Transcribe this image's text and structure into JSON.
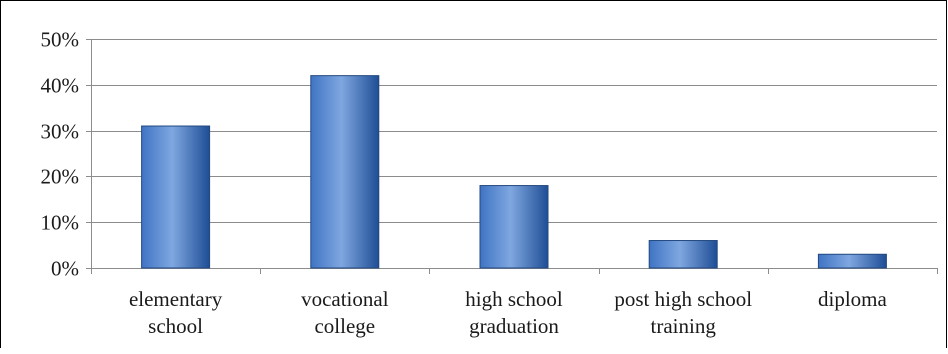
{
  "chart_data": {
    "type": "bar",
    "title": "",
    "xlabel": "",
    "ylabel": "",
    "categories": [
      [
        "elementary",
        "school"
      ],
      [
        "vocational",
        "college"
      ],
      [
        "high school",
        "graduation"
      ],
      [
        "post high school",
        "training"
      ],
      [
        "diploma"
      ]
    ],
    "values": [
      31,
      42,
      18,
      6,
      3
    ],
    "ylim": [
      0,
      50
    ],
    "yticks": [
      0,
      10,
      20,
      30,
      40,
      50
    ],
    "ytick_labels": [
      "0%",
      "10%",
      "20%",
      "30%",
      "40%",
      "50%"
    ],
    "grid": true,
    "legend": "none",
    "colors": {
      "bar_light": "#7fa7e0",
      "bar_mid": "#3f74c4",
      "bar_dark": "#1f4e96",
      "bar_edge": "#23497f",
      "grid": "#8c8c8c",
      "axis": "#8c8c8c",
      "frame": "#000000"
    }
  }
}
